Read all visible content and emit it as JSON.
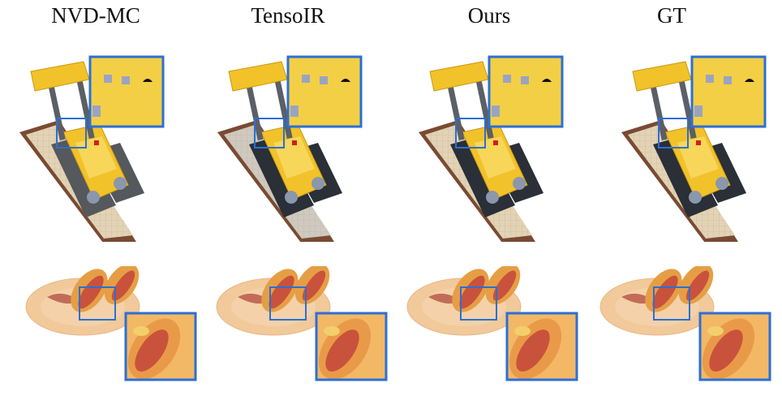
{
  "figure": {
    "columns": [
      {
        "label": "NVD-MC"
      },
      {
        "label": "TensoIR"
      },
      {
        "label": "Ours"
      },
      {
        "label": "GT"
      }
    ],
    "rows": [
      {
        "subject": "lego-bulldozer-render"
      },
      {
        "subject": "hotdog-plate-render"
      }
    ],
    "colors": {
      "inset_border": "#2b6fd6",
      "lego_yellow": "#f2c22a",
      "base_plate": "#e3d3b4",
      "plate": "#f1c99a",
      "bun": "#e69e45",
      "sausage": "#c9523c"
    }
  }
}
